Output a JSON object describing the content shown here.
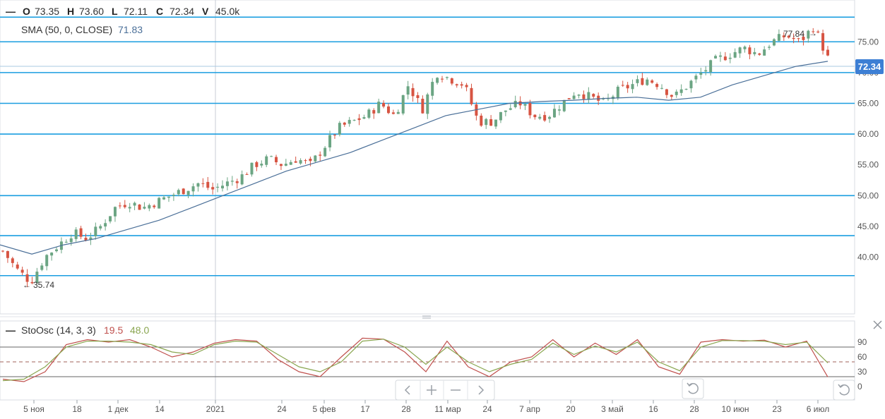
{
  "legend": {
    "dash": "—",
    "o_label": "O",
    "o_value": "73.35",
    "h_label": "H",
    "h_value": "73.60",
    "l_label": "L",
    "l_value": "72.11",
    "c_label": "C",
    "c_value": "72.34",
    "v_label": "V",
    "v_value": "45.0k"
  },
  "sma": {
    "label": "SMA (50, 0, CLOSE)",
    "value": "71.83"
  },
  "stoch": {
    "dash": "—",
    "label": "StoOsc (14, 3, 3)",
    "k_value": "19.5",
    "d_value": "48.0"
  },
  "last_price": "72.34",
  "annotations": {
    "high": "77.84",
    "low": "35.74"
  },
  "colors": {
    "up": "#6ba583",
    "down": "#d75442",
    "sma": "#4a6f98",
    "hline": "#1a9ee0",
    "price_tag": "#3d7fd4",
    "k_line": "#c0504d",
    "d_line": "#8aa650",
    "stoch_dash": "#a0605a"
  },
  "icons": {
    "close": "close-icon",
    "reset": "reset-icon",
    "nav": [
      "chevron-left-icon",
      "plus-icon",
      "minus-icon",
      "chevron-right-icon"
    ]
  },
  "chart_data": {
    "type": "candlestick",
    "price_axis": {
      "ticks": [
        "75.00",
        "70.00",
        "65.00",
        "60.00",
        "55.00",
        "50.00",
        "45.00",
        "40.00"
      ],
      "range": [
        32.5,
        79.5
      ]
    },
    "horizontal_lines": [
      79,
      75,
      70,
      65,
      60,
      50,
      43.5,
      37
    ],
    "stoch_axis": {
      "ticks": [
        "90",
        "60",
        "30",
        "0"
      ],
      "levels": [
        80,
        50,
        20
      ]
    },
    "date_labels": [
      "5 ноя",
      "18",
      "1 дек",
      "14",
      "2021",
      "24",
      "5 фев",
      "17",
      "28",
      "11 мар",
      "24",
      "7 апр",
      "20",
      "3 май",
      "16",
      "28",
      "10 июн",
      "23",
      "6 июл"
    ],
    "close_path": [
      41,
      38,
      36,
      40,
      42,
      44,
      43,
      45,
      48,
      49,
      48,
      49,
      50,
      51,
      52,
      51,
      52,
      53,
      55,
      56,
      55,
      56,
      55,
      58,
      61,
      62,
      63,
      65,
      63,
      68,
      64,
      70,
      69,
      68,
      62,
      62,
      64,
      65,
      63,
      63,
      65,
      67,
      66,
      65,
      67,
      68,
      69,
      68,
      66,
      68,
      70,
      72,
      73,
      74,
      73,
      75,
      76,
      75,
      77.5,
      72.34
    ],
    "sma_path": [
      42,
      40.5,
      42,
      43,
      44.5,
      46,
      48,
      50,
      52,
      54,
      55.5,
      57,
      59,
      61,
      63,
      64,
      65,
      65.3,
      65.5,
      65.8,
      66,
      65.5,
      66,
      68,
      69.5,
      71,
      71.83
    ],
    "k_path": [
      15,
      10,
      30,
      85,
      95,
      90,
      95,
      80,
      60,
      70,
      88,
      95,
      92,
      55,
      30,
      20,
      60,
      98,
      96,
      70,
      30,
      92,
      40,
      20,
      50,
      60,
      95,
      60,
      88,
      65,
      95,
      40,
      25,
      90,
      95,
      92,
      94,
      80,
      92,
      19.5
    ],
    "d_path": [
      12,
      15,
      40,
      80,
      92,
      92,
      90,
      85,
      70,
      65,
      85,
      92,
      90,
      65,
      40,
      30,
      50,
      92,
      96,
      80,
      45,
      80,
      50,
      30,
      45,
      55,
      88,
      65,
      82,
      70,
      90,
      50,
      32,
      80,
      93,
      93,
      92,
      85,
      90,
      48
    ]
  }
}
